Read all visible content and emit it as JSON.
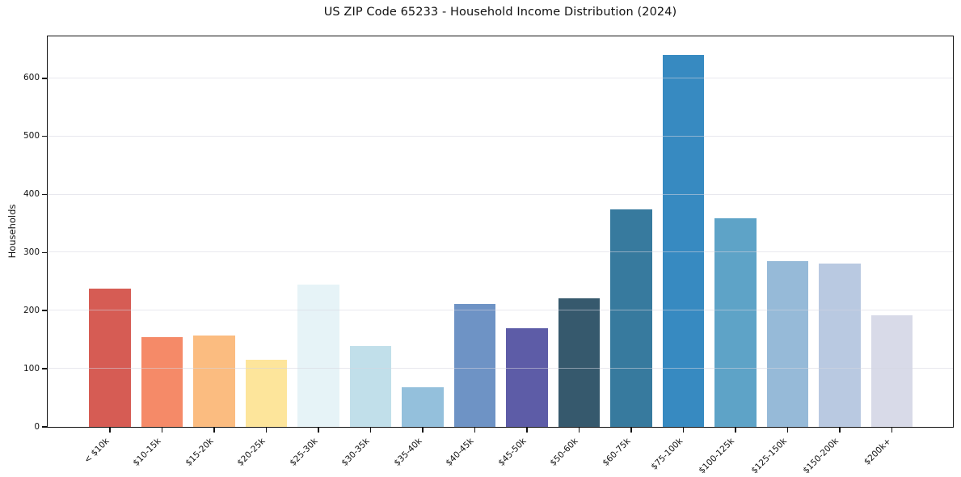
{
  "title": "US ZIP Code 65233 - Household Income Distribution (2024)",
  "chart_data": {
    "type": "bar",
    "title": "US ZIP Code 65233 - Household Income Distribution (2024)",
    "xlabel": "",
    "ylabel": "Households",
    "categories": [
      "< $10k",
      "$10-15k",
      "$15-20k",
      "$20-25k",
      "$25-30k",
      "$30-35k",
      "$35-40k",
      "$40-45k",
      "$45-50k",
      "$50-60k",
      "$60-75k",
      "$75-100k",
      "$100-125k",
      "$125-150k",
      "$150-200k",
      "$200k+"
    ],
    "values": [
      238,
      155,
      157,
      115,
      245,
      139,
      68,
      211,
      170,
      221,
      374,
      640,
      359,
      285,
      281,
      192
    ],
    "bar_colors": [
      "#d65c54",
      "#f58a68",
      "#fbbc80",
      "#fde59b",
      "#e6f3f7",
      "#c1dfea",
      "#94c0dc",
      "#6e93c5",
      "#5d5ca7",
      "#36596d",
      "#377a9e",
      "#378ac1",
      "#5ea3c7",
      "#96bad8",
      "#b9c9e1",
      "#d8dae8"
    ],
    "yticks": [
      0,
      100,
      200,
      300,
      400,
      500,
      600
    ],
    "ylim": [
      0,
      672
    ],
    "grid": "horizontal",
    "legend": "none",
    "bar_width_ratio": 0.8
  }
}
